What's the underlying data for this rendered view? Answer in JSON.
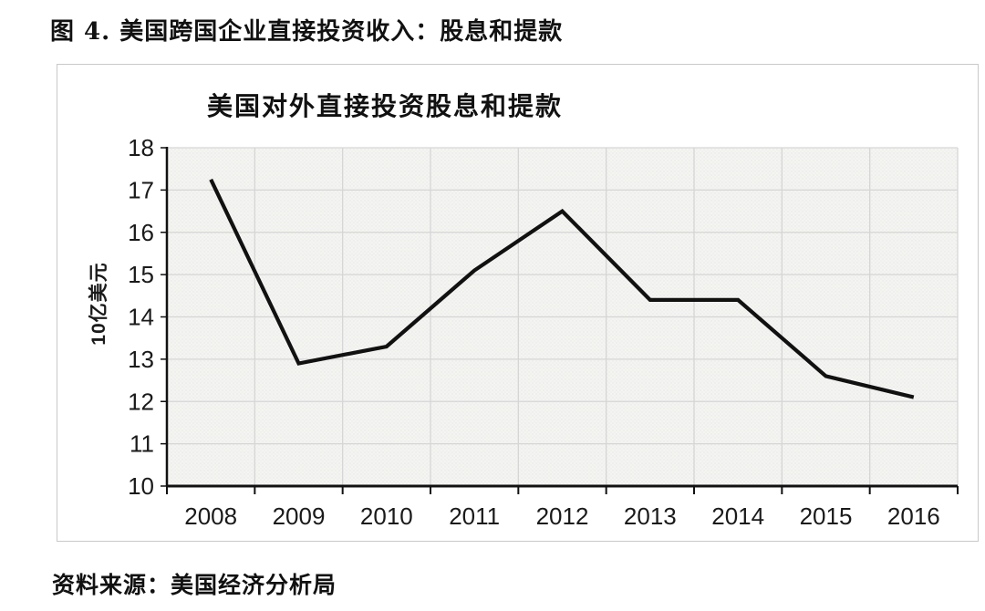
{
  "page": {
    "figure_title": "图 4. 美国跨国企业直接投资收入：股息和提款",
    "source_note": "资料来源：美国经济分析局"
  },
  "chart_data": {
    "type": "line",
    "title": "美国对外直接投资股息和提款",
    "categories": [
      "2008",
      "2009",
      "2010",
      "2011",
      "2012",
      "2013",
      "2014",
      "2015",
      "2016"
    ],
    "values": [
      17.25,
      12.9,
      13.3,
      15.1,
      16.5,
      14.4,
      14.4,
      12.6,
      12.1
    ],
    "xlabel": "",
    "ylabel": "10亿美元",
    "ylim": [
      10,
      18
    ],
    "yticks": [
      10,
      11,
      12,
      13,
      14,
      15,
      16,
      17,
      18
    ],
    "grid": true,
    "legend": false,
    "colors": {
      "line": "#111111",
      "axis": "#111111",
      "grid": "#d6d6d6",
      "plot_bg": "#f4f4f2",
      "plot_dot": "#e7e7e4",
      "text": "#1a1a1a",
      "chart_border": "#c9c9c9"
    }
  }
}
